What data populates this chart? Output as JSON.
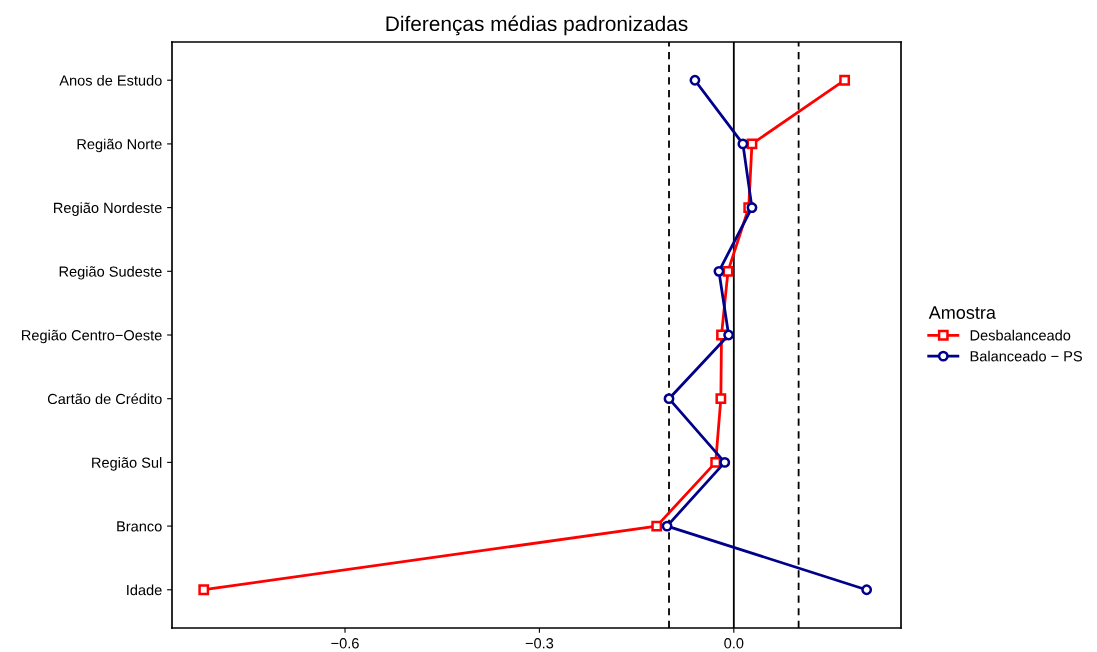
{
  "chart_data": {
    "type": "line",
    "orientation": "horizontal",
    "title": "Diferenças médias padronizadas",
    "legend_title": "Amostra",
    "legend": "right",
    "grid": false,
    "categories": [
      "Anos de Estudo",
      "Região Norte",
      "Região Nordeste",
      "Região Sudeste",
      "Região Centro−Oeste",
      "Cartão de Crédito",
      "Região Sul",
      "Branco",
      "Idade"
    ],
    "series": [
      {
        "name": "Desbalanceado",
        "color": "#ff0000",
        "marker": "square",
        "values": [
          0.171,
          0.028,
          0.023,
          -0.009,
          -0.019,
          -0.02,
          -0.028,
          -0.119,
          -0.818
        ]
      },
      {
        "name": "Balanceado − PS",
        "color": "#00008b",
        "marker": "circle",
        "values": [
          -0.06,
          0.014,
          0.028,
          -0.023,
          -0.008,
          -0.1,
          -0.014,
          -0.103,
          0.205
        ]
      }
    ],
    "xlim": [
      -0.867,
      0.258
    ],
    "xticks": [
      {
        "value": -0.6,
        "label": "−0.6"
      },
      {
        "value": -0.3,
        "label": "−0.3"
      },
      {
        "value": 0.0,
        "label": "0.0"
      }
    ],
    "ref_lines": [
      {
        "axis": "x",
        "value": -0.1,
        "line_style": "dashed",
        "color": "#000000"
      },
      {
        "axis": "x",
        "value": 0,
        "line_style": "solid",
        "color": "#000000"
      },
      {
        "axis": "x",
        "value": 0.1,
        "line_style": "dashed",
        "color": "#000000"
      }
    ]
  }
}
